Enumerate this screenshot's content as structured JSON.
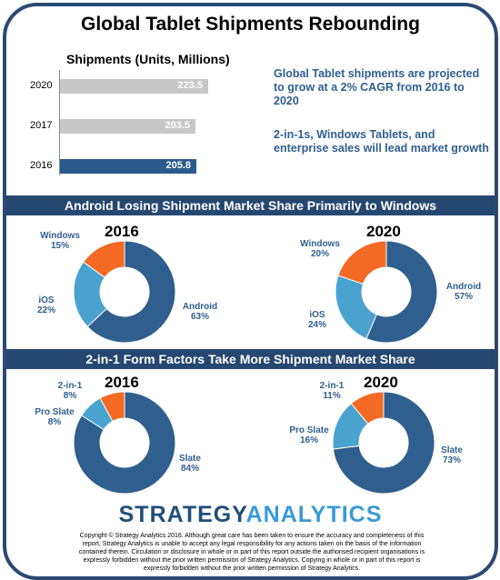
{
  "title": "Global Tablet Shipments Rebounding",
  "shipments": {
    "label": "Shipments (Units, Millions)",
    "notes": [
      "Global Tablet shipments are projected to grow at a 2% CAGR from 2016 to 2020",
      "2-in-1s, Windows Tablets, and enterprise sales will lead market growth"
    ]
  },
  "os_section": {
    "title": "Android Losing Shipment Market Share Primarily to Windows"
  },
  "ff_section": {
    "title": "2-in-1 Form Factors Take More Shipment Market Share"
  },
  "brand": {
    "part1": "STRATEGY",
    "part2": "ANALYTICS"
  },
  "copyright": "Copyright © Strategy Analytics 2016. Although great care has been taken to ensure the accuracy and completeness of this report, Strategy Analytics is unable to accept any legal responsibility for any actions taken on the basis of the information contained therein. Circulation or disclosure in whole or in part of this report outside the authorised recipient organisations is expressly forbidden without the prior written permission of Strategy Analytics. Copying in whole or in part of this report is expressly forbidden without the prior written permission of Strategy Analytics.",
  "colors": {
    "frame": "#2b4a73",
    "band": "#254870",
    "bar_current": "#2b5b8c",
    "bar_projected": "#c8c8c8",
    "dark_blue": "#2f5f8e",
    "light_blue": "#4aa2cf",
    "orange": "#f26a23"
  },
  "chart_data": [
    {
      "type": "bar",
      "orientation": "horizontal",
      "title": "Shipments (Units, Millions)",
      "categories": [
        "2020",
        "2017",
        "2016"
      ],
      "values": [
        223.5,
        203.5,
        205.8
      ],
      "value_labels": [
        "223.5",
        "203.5",
        "205.8"
      ],
      "xlim": [
        0,
        260
      ]
    },
    {
      "type": "pie",
      "donut": true,
      "title": "2016",
      "slices": [
        {
          "label": "Android",
          "value": 63,
          "display": "63%",
          "color": "#2f5f8e"
        },
        {
          "label": "iOS",
          "value": 22,
          "display": "22%",
          "color": "#4aa2cf"
        },
        {
          "label": "Windows",
          "value": 15,
          "display": "15%",
          "color": "#f26a23"
        }
      ]
    },
    {
      "type": "pie",
      "donut": true,
      "title": "2020",
      "slices": [
        {
          "label": "Android",
          "value": 57,
          "display": "57%",
          "color": "#2f5f8e"
        },
        {
          "label": "iOS",
          "value": 24,
          "display": "24%",
          "color": "#4aa2cf"
        },
        {
          "label": "Windows",
          "value": 20,
          "display": "20%",
          "color": "#f26a23"
        }
      ]
    },
    {
      "type": "pie",
      "donut": true,
      "title": "2016",
      "slices": [
        {
          "label": "Slate",
          "value": 84,
          "display": "84%",
          "color": "#2f5f8e"
        },
        {
          "label": "Pro Slate",
          "value": 8,
          "display": "8%",
          "color": "#4aa2cf"
        },
        {
          "label": "2-in-1",
          "value": 8,
          "display": "8%",
          "color": "#f26a23"
        }
      ]
    },
    {
      "type": "pie",
      "donut": true,
      "title": "2020",
      "slices": [
        {
          "label": "Slate",
          "value": 73,
          "display": "73%",
          "color": "#2f5f8e"
        },
        {
          "label": "Pro Slate",
          "value": 16,
          "display": "16%",
          "color": "#4aa2cf"
        },
        {
          "label": "2-in-1",
          "value": 11,
          "display": "11%",
          "color": "#f26a23"
        }
      ]
    }
  ]
}
